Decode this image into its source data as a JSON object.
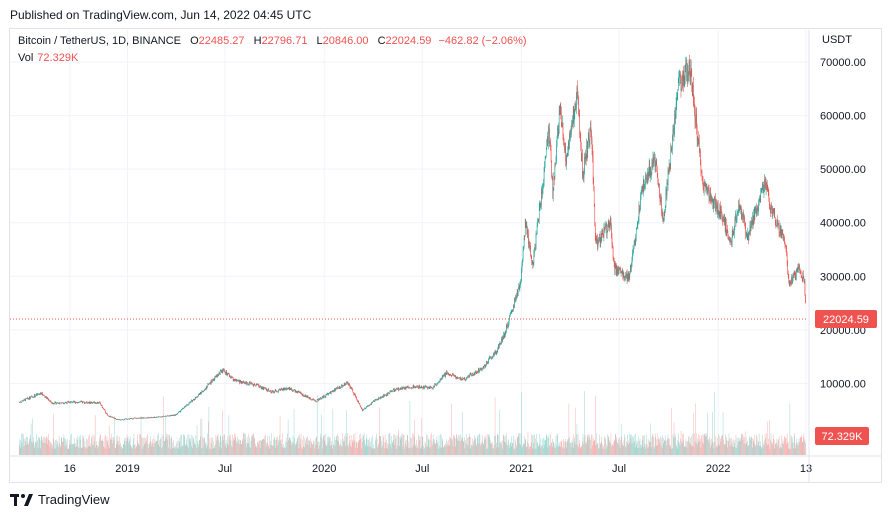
{
  "published": "Published on TradingView.com, Jun 14, 2022 04:45 UTC",
  "legend": {
    "symbol": "Bitcoin / TetherUS, 1D, BINANCE",
    "open_label": "O",
    "open": "22485.27",
    "high_label": "H",
    "high": "22796.71",
    "low_label": "L",
    "low": "20846.00",
    "close_label": "C",
    "close": "22024.59",
    "change": "−462.82 (−2.06%)",
    "vol_label": "Vol",
    "vol": "72.329K"
  },
  "currency": "USDT",
  "brand": "TradingView",
  "colors": {
    "up": "#26a69a",
    "down": "#ef5350",
    "grid": "#f0f3fa",
    "axis_text": "#131722"
  },
  "chart_data": {
    "type": "candlestick",
    "title": "Bitcoin / TetherUS, 1D, BINANCE",
    "ylabel": "USDT",
    "ylim": [
      0,
      72000
    ],
    "y_ticks": [
      "10000.00",
      "20000.00",
      "30000.00",
      "40000.00",
      "50000.00",
      "60000.00",
      "70000.00"
    ],
    "x_ticks": [
      "16",
      "2019",
      "Jul",
      "2020",
      "Jul",
      "2021",
      "Jul",
      "2022",
      "13"
    ],
    "last_price": "22024.59",
    "last_volume": "72.329K",
    "grid": true,
    "price_path": [
      [
        "2018-06-14",
        6500
      ],
      [
        "2018-07-25",
        8200
      ],
      [
        "2018-08-14",
        6300
      ],
      [
        "2018-09-20",
        6500
      ],
      [
        "2018-11-10",
        6400
      ],
      [
        "2018-11-25",
        4000
      ],
      [
        "2018-12-15",
        3200
      ],
      [
        "2019-01-20",
        3550
      ],
      [
        "2019-02-15",
        3600
      ],
      [
        "2019-03-31",
        4100
      ],
      [
        "2019-05-15",
        8000
      ],
      [
        "2019-06-26",
        12500
      ],
      [
        "2019-07-20",
        10500
      ],
      [
        "2019-08-31",
        9600
      ],
      [
        "2019-09-25",
        8400
      ],
      [
        "2019-10-26",
        9200
      ],
      [
        "2019-12-17",
        6700
      ],
      [
        "2020-01-31",
        9400
      ],
      [
        "2020-02-14",
        10200
      ],
      [
        "2020-03-12",
        5000
      ],
      [
        "2020-04-01",
        6600
      ],
      [
        "2020-05-10",
        8800
      ],
      [
        "2020-06-15",
        9400
      ],
      [
        "2020-07-20",
        9200
      ],
      [
        "2020-08-15",
        11900
      ],
      [
        "2020-09-15",
        10700
      ],
      [
        "2020-10-21",
        12900
      ],
      [
        "2020-11-15",
        16000
      ],
      [
        "2020-12-01",
        19200
      ],
      [
        "2020-12-31",
        29000
      ],
      [
        "2021-01-08",
        40000
      ],
      [
        "2021-01-22",
        32000
      ],
      [
        "2021-02-08",
        46000
      ],
      [
        "2021-02-21",
        57000
      ],
      [
        "2021-02-28",
        45500
      ],
      [
        "2021-03-13",
        61000
      ],
      [
        "2021-03-25",
        51500
      ],
      [
        "2021-04-14",
        64000
      ],
      [
        "2021-04-25",
        49000
      ],
      [
        "2021-05-10",
        58000
      ],
      [
        "2021-05-19",
        36000
      ],
      [
        "2021-06-15",
        40000
      ],
      [
        "2021-06-22",
        31500
      ],
      [
        "2021-07-20",
        29800
      ],
      [
        "2021-08-14",
        47000
      ],
      [
        "2021-09-06",
        52000
      ],
      [
        "2021-09-21",
        40600
      ],
      [
        "2021-10-20",
        66000
      ],
      [
        "2021-11-10",
        68800
      ],
      [
        "2021-12-04",
        47000
      ],
      [
        "2022-01-10",
        41000
      ],
      [
        "2022-01-24",
        36000
      ],
      [
        "2022-02-10",
        44000
      ],
      [
        "2022-02-24",
        37000
      ],
      [
        "2022-03-29",
        47500
      ],
      [
        "2022-04-10",
        42000
      ],
      [
        "2022-05-06",
        36000
      ],
      [
        "2022-05-12",
        28500
      ],
      [
        "2022-05-31",
        31700
      ],
      [
        "2022-06-10",
        29000
      ],
      [
        "2022-06-13",
        22024
      ]
    ]
  }
}
